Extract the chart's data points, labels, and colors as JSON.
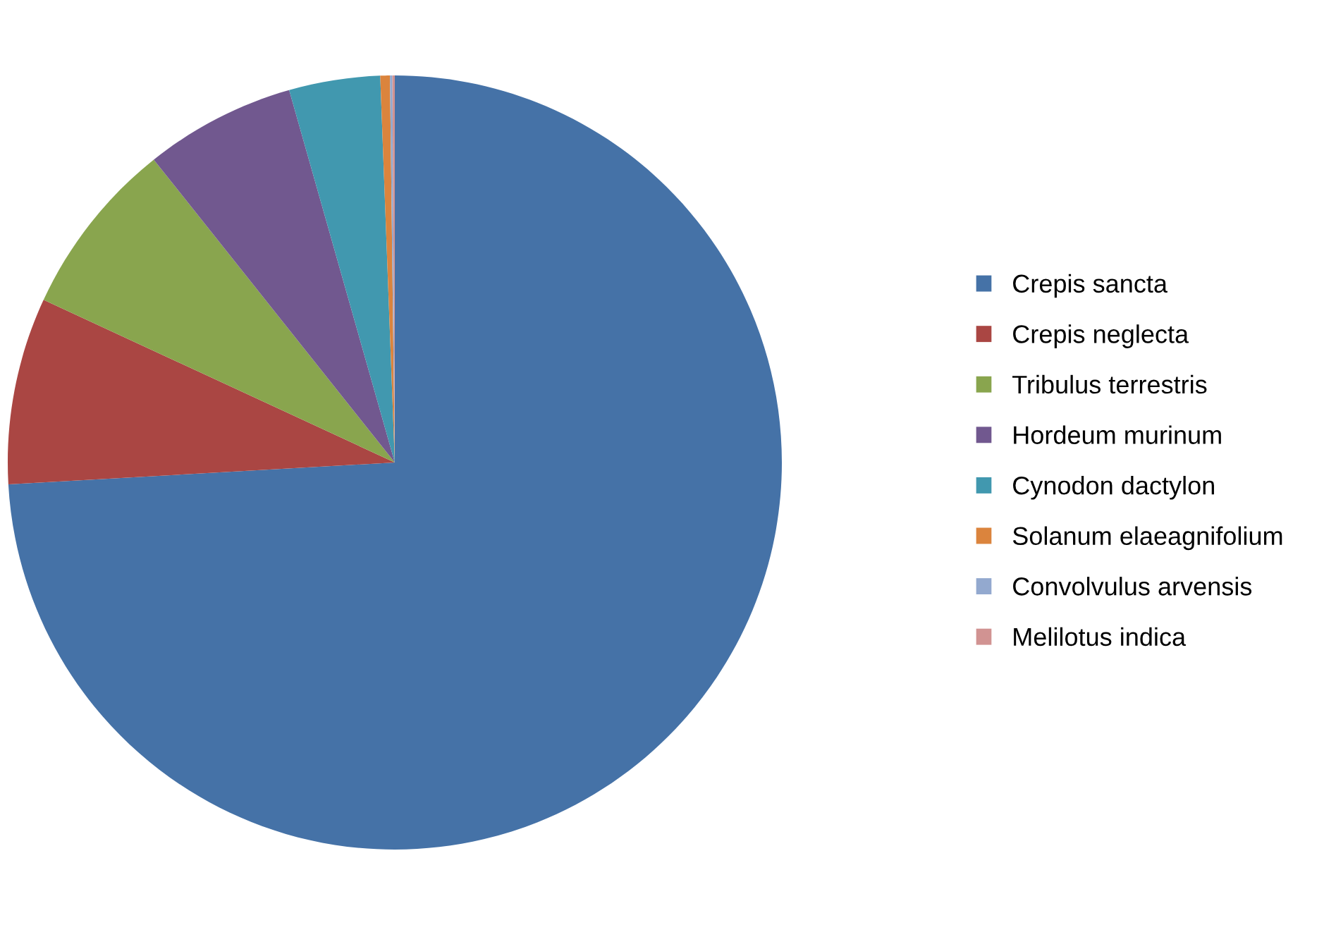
{
  "chart_data": {
    "type": "pie",
    "categories": [
      "Crepis sancta",
      "Crepis neglecta",
      "Tribulus terrestris",
      "Hordeum murinum",
      "Cynodon dactylon",
      "Solanum elaeagnifolium",
      "Convolvulus arvensis",
      "Melilotus indica"
    ],
    "values": [
      74.1,
      7.8,
      7.4,
      6.3,
      3.8,
      0.4,
      0.1,
      0.1
    ],
    "colors": [
      "#4572a7",
      "#aa4643",
      "#89a54e",
      "#71588f",
      "#4198af",
      "#db843d",
      "#93a9cf",
      "#d19392"
    ],
    "legend": "right"
  }
}
